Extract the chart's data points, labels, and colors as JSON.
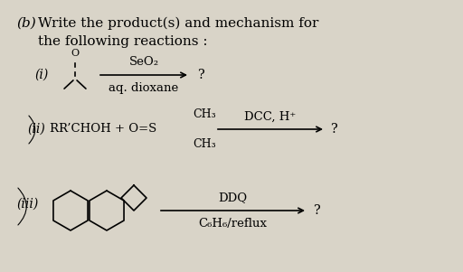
{
  "bg_color": "#d9d4c8",
  "title_b": "(b)",
  "title_text": "Write the product(s) and mechanism for\nthe following reactions :",
  "reaction_i_label": "(i)",
  "reaction_i_reagent_top": "SeO₂",
  "reaction_i_reagent_bot": "aq. dioxane",
  "reaction_ii_label": "(ii)",
  "reaction_ii_text": "RR’CHOH + O=S",
  "reaction_ii_ch3_top": "CH₃",
  "reaction_ii_ch3_bot": "CH₃",
  "reaction_ii_reagent": "DCC, H⁺",
  "reaction_iii_label": "(iii)",
  "reaction_iii_reagent_top": "DDQ",
  "reaction_iii_reagent_bot": "C₆H₆/reflux",
  "question_mark": "?",
  "font_size_title": 11,
  "font_size_label": 10,
  "font_size_reagent": 9.5,
  "font_size_struct": 9
}
